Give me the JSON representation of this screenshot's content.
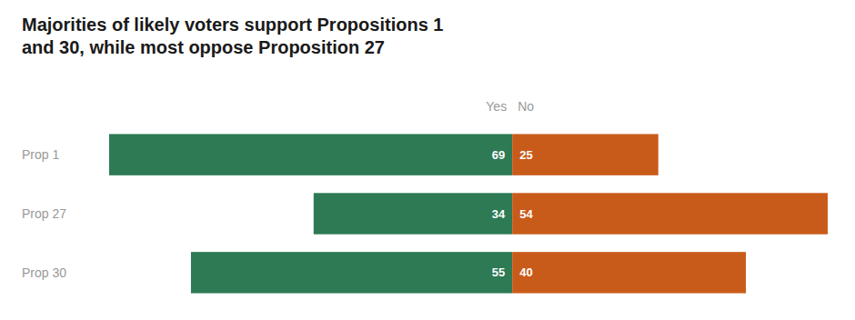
{
  "chart_data": {
    "type": "bar",
    "orientation": "horizontal",
    "title": "Majorities of likely voters support Propositions 1\nand 30, while most oppose Proposition 27",
    "categories": [
      "Prop 1",
      "Prop 27",
      "Prop 30"
    ],
    "series": [
      {
        "name": "Yes",
        "color": "#2D7A55",
        "values": [
          69,
          34,
          55
        ]
      },
      {
        "name": "No",
        "color": "#C95B1A",
        "values": [
          25,
          54,
          40
        ]
      }
    ],
    "data_labels": true,
    "tick_labels": false,
    "grid": false
  }
}
